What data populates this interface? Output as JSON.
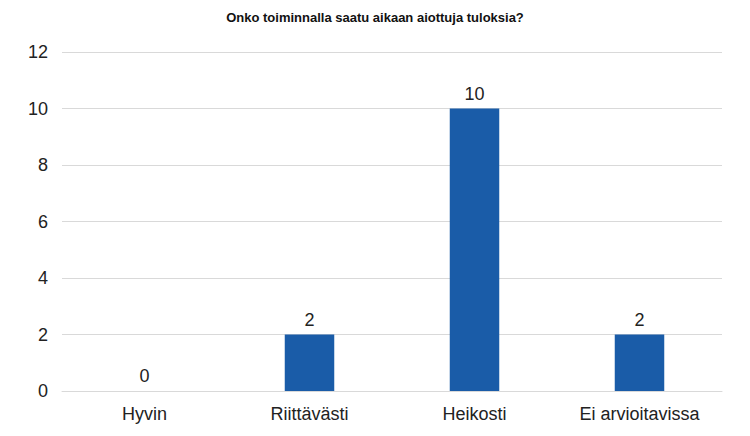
{
  "chart_data": {
    "type": "bar",
    "title": "Onko toiminnalla saatu aikaan aiottuja tuloksia?",
    "categories": [
      "Hyvin",
      "Riittävästi",
      "Heikosti",
      "Ei arvioitavissa"
    ],
    "values": [
      0,
      2,
      10,
      2
    ],
    "color": "#1a5ca8",
    "ylim": [
      0,
      12
    ],
    "yticks": [
      0,
      2,
      4,
      6,
      8,
      10,
      12
    ],
    "grid": true,
    "data_labels": true
  }
}
